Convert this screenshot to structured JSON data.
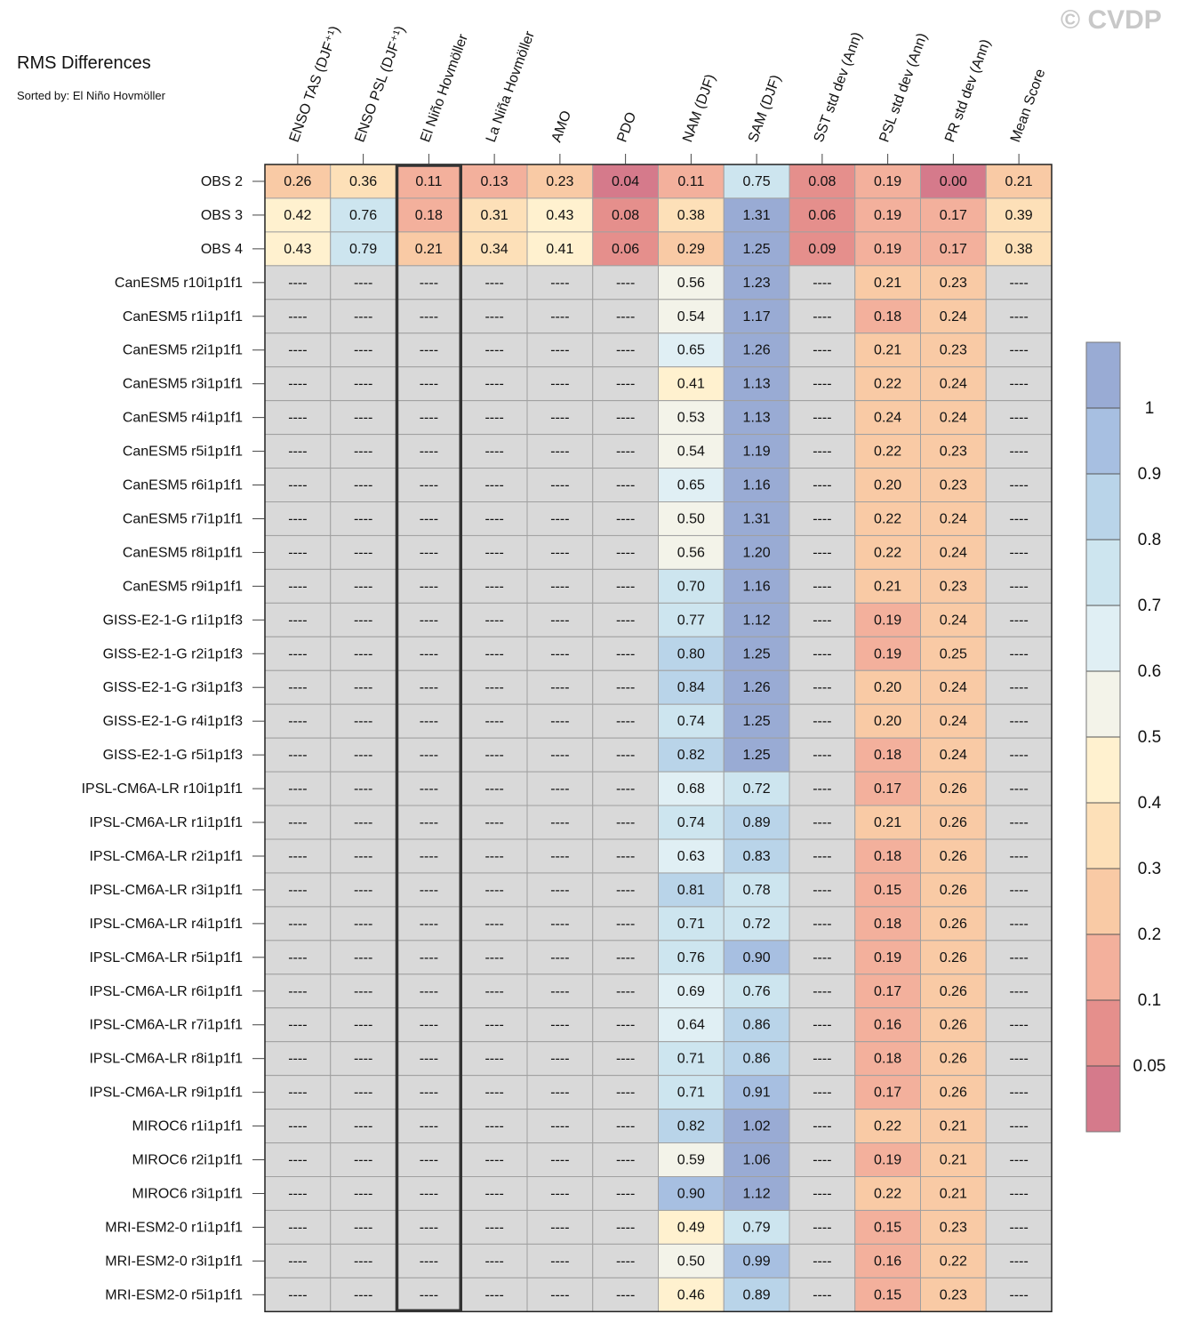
{
  "title": "RMS Differences",
  "subtitle": "Sorted by: El Niño Hovmöller",
  "watermark": "© CVDP",
  "chart_data": {
    "type": "heatmap",
    "columns": [
      "ENSO TAS (DJF⁺¹)",
      "ENSO PSL (DJF⁺¹)",
      "El Niño Hovmöller",
      "La Niña Hovmöller",
      "AMO",
      "PDO",
      "NAM (DJF)",
      "SAM (DJF)",
      "SST std dev (Ann)",
      "PSL std dev (Ann)",
      "PR std dev (Ann)",
      "Mean Score"
    ],
    "sorted_by": "El Niño Hovmöller",
    "missing_label": "----",
    "rows": [
      {
        "name": "OBS 2",
        "values": [
          0.26,
          0.36,
          0.11,
          0.13,
          0.23,
          0.04,
          0.11,
          0.75,
          0.08,
          0.19,
          0.0,
          0.21
        ]
      },
      {
        "name": "OBS 3",
        "values": [
          0.42,
          0.76,
          0.18,
          0.31,
          0.43,
          0.08,
          0.38,
          1.31,
          0.06,
          0.19,
          0.17,
          0.39
        ]
      },
      {
        "name": "OBS 4",
        "values": [
          0.43,
          0.79,
          0.21,
          0.34,
          0.41,
          0.06,
          0.29,
          1.25,
          0.09,
          0.19,
          0.17,
          0.38
        ]
      },
      {
        "name": "CanESM5 r10i1p1f1",
        "values": [
          null,
          null,
          null,
          null,
          null,
          null,
          0.56,
          1.23,
          null,
          0.21,
          0.23,
          null
        ]
      },
      {
        "name": "CanESM5 r1i1p1f1",
        "values": [
          null,
          null,
          null,
          null,
          null,
          null,
          0.54,
          1.17,
          null,
          0.18,
          0.24,
          null
        ]
      },
      {
        "name": "CanESM5 r2i1p1f1",
        "values": [
          null,
          null,
          null,
          null,
          null,
          null,
          0.65,
          1.26,
          null,
          0.21,
          0.23,
          null
        ]
      },
      {
        "name": "CanESM5 r3i1p1f1",
        "values": [
          null,
          null,
          null,
          null,
          null,
          null,
          0.41,
          1.13,
          null,
          0.22,
          0.24,
          null
        ]
      },
      {
        "name": "CanESM5 r4i1p1f1",
        "values": [
          null,
          null,
          null,
          null,
          null,
          null,
          0.53,
          1.13,
          null,
          0.24,
          0.24,
          null
        ]
      },
      {
        "name": "CanESM5 r5i1p1f1",
        "values": [
          null,
          null,
          null,
          null,
          null,
          null,
          0.54,
          1.19,
          null,
          0.22,
          0.23,
          null
        ]
      },
      {
        "name": "CanESM5 r6i1p1f1",
        "values": [
          null,
          null,
          null,
          null,
          null,
          null,
          0.65,
          1.16,
          null,
          0.2,
          0.23,
          null
        ]
      },
      {
        "name": "CanESM5 r7i1p1f1",
        "values": [
          null,
          null,
          null,
          null,
          null,
          null,
          0.5,
          1.31,
          null,
          0.22,
          0.24,
          null
        ]
      },
      {
        "name": "CanESM5 r8i1p1f1",
        "values": [
          null,
          null,
          null,
          null,
          null,
          null,
          0.56,
          1.2,
          null,
          0.22,
          0.24,
          null
        ]
      },
      {
        "name": "CanESM5 r9i1p1f1",
        "values": [
          null,
          null,
          null,
          null,
          null,
          null,
          0.7,
          1.16,
          null,
          0.21,
          0.23,
          null
        ]
      },
      {
        "name": "GISS-E2-1-G r1i1p1f3",
        "values": [
          null,
          null,
          null,
          null,
          null,
          null,
          0.77,
          1.12,
          null,
          0.19,
          0.24,
          null
        ]
      },
      {
        "name": "GISS-E2-1-G r2i1p1f3",
        "values": [
          null,
          null,
          null,
          null,
          null,
          null,
          0.8,
          1.25,
          null,
          0.19,
          0.25,
          null
        ]
      },
      {
        "name": "GISS-E2-1-G r3i1p1f3",
        "values": [
          null,
          null,
          null,
          null,
          null,
          null,
          0.84,
          1.26,
          null,
          0.2,
          0.24,
          null
        ]
      },
      {
        "name": "GISS-E2-1-G r4i1p1f3",
        "values": [
          null,
          null,
          null,
          null,
          null,
          null,
          0.74,
          1.25,
          null,
          0.2,
          0.24,
          null
        ]
      },
      {
        "name": "GISS-E2-1-G r5i1p1f3",
        "values": [
          null,
          null,
          null,
          null,
          null,
          null,
          0.82,
          1.25,
          null,
          0.18,
          0.24,
          null
        ]
      },
      {
        "name": "IPSL-CM6A-LR r10i1p1f1",
        "values": [
          null,
          null,
          null,
          null,
          null,
          null,
          0.68,
          0.72,
          null,
          0.17,
          0.26,
          null
        ]
      },
      {
        "name": "IPSL-CM6A-LR r1i1p1f1",
        "values": [
          null,
          null,
          null,
          null,
          null,
          null,
          0.74,
          0.89,
          null,
          0.21,
          0.26,
          null
        ]
      },
      {
        "name": "IPSL-CM6A-LR r2i1p1f1",
        "values": [
          null,
          null,
          null,
          null,
          null,
          null,
          0.63,
          0.83,
          null,
          0.18,
          0.26,
          null
        ]
      },
      {
        "name": "IPSL-CM6A-LR r3i1p1f1",
        "values": [
          null,
          null,
          null,
          null,
          null,
          null,
          0.81,
          0.78,
          null,
          0.15,
          0.26,
          null
        ]
      },
      {
        "name": "IPSL-CM6A-LR r4i1p1f1",
        "values": [
          null,
          null,
          null,
          null,
          null,
          null,
          0.71,
          0.72,
          null,
          0.18,
          0.26,
          null
        ]
      },
      {
        "name": "IPSL-CM6A-LR r5i1p1f1",
        "values": [
          null,
          null,
          null,
          null,
          null,
          null,
          0.76,
          0.9,
          null,
          0.19,
          0.26,
          null
        ]
      },
      {
        "name": "IPSL-CM6A-LR r6i1p1f1",
        "values": [
          null,
          null,
          null,
          null,
          null,
          null,
          0.69,
          0.76,
          null,
          0.17,
          0.26,
          null
        ]
      },
      {
        "name": "IPSL-CM6A-LR r7i1p1f1",
        "values": [
          null,
          null,
          null,
          null,
          null,
          null,
          0.64,
          0.86,
          null,
          0.16,
          0.26,
          null
        ]
      },
      {
        "name": "IPSL-CM6A-LR r8i1p1f1",
        "values": [
          null,
          null,
          null,
          null,
          null,
          null,
          0.71,
          0.86,
          null,
          0.18,
          0.26,
          null
        ]
      },
      {
        "name": "IPSL-CM6A-LR r9i1p1f1",
        "values": [
          null,
          null,
          null,
          null,
          null,
          null,
          0.71,
          0.91,
          null,
          0.17,
          0.26,
          null
        ]
      },
      {
        "name": "MIROC6 r1i1p1f1",
        "values": [
          null,
          null,
          null,
          null,
          null,
          null,
          0.82,
          1.02,
          null,
          0.22,
          0.21,
          null
        ]
      },
      {
        "name": "MIROC6 r2i1p1f1",
        "values": [
          null,
          null,
          null,
          null,
          null,
          null,
          0.59,
          1.06,
          null,
          0.19,
          0.21,
          null
        ]
      },
      {
        "name": "MIROC6 r3i1p1f1",
        "values": [
          null,
          null,
          null,
          null,
          null,
          null,
          0.9,
          1.12,
          null,
          0.22,
          0.21,
          null
        ]
      },
      {
        "name": "MRI-ESM2-0 r1i1p1f1",
        "values": [
          null,
          null,
          null,
          null,
          null,
          null,
          0.49,
          0.79,
          null,
          0.15,
          0.23,
          null
        ]
      },
      {
        "name": "MRI-ESM2-0 r3i1p1f1",
        "values": [
          null,
          null,
          null,
          null,
          null,
          null,
          0.5,
          0.99,
          null,
          0.16,
          0.22,
          null
        ]
      },
      {
        "name": "MRI-ESM2-0 r5i1p1f1",
        "values": [
          null,
          null,
          null,
          null,
          null,
          null,
          0.46,
          0.89,
          null,
          0.15,
          0.23,
          null
        ]
      }
    ],
    "colorbar": {
      "levels": [
        0.05,
        0.1,
        0.2,
        0.3,
        0.4,
        0.5,
        0.6,
        0.7,
        0.8,
        0.9,
        1
      ],
      "tick_labels": [
        "0.05",
        "0.1",
        "0.2",
        "0.3",
        "0.4",
        "0.5",
        "0.6",
        "0.7",
        "0.8",
        "0.9",
        "1"
      ],
      "colors": [
        "#d57a8b",
        "#e58f8c",
        "#f3b09c",
        "#f9caa5",
        "#fde0b8",
        "#fff1cf",
        "#f3f3e9",
        "#e0eff4",
        "#cde5ef",
        "#b9d4e9",
        "#a7bfe1",
        "#99abd4"
      ],
      "missing_color": "#d9d9d9"
    },
    "highlight_column": "El Niño Hovmöller"
  }
}
